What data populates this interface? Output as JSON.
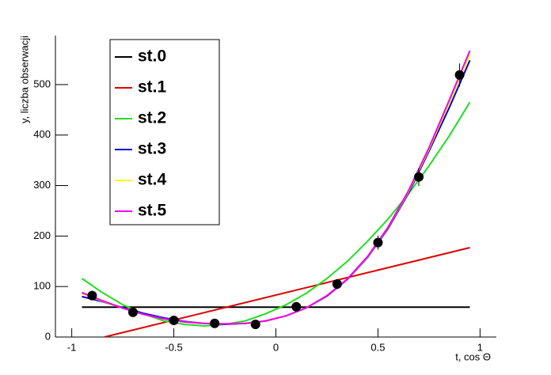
{
  "chart_data": {
    "type": "scatter",
    "x_label": "t, cos Θ",
    "y_label": "y, liczba obserwacji",
    "xlim": [
      -1.08,
      1.08
    ],
    "ylim": [
      0,
      597
    ],
    "xticks": [
      -1,
      -0.5,
      0,
      0.5,
      1
    ],
    "yticks": [
      0,
      100,
      200,
      300,
      400,
      500
    ],
    "color": "#000000",
    "x": [
      -0.9,
      -0.7,
      -0.5,
      -0.3,
      -0.1,
      0.1,
      0.3,
      0.5,
      0.7,
      0.9
    ],
    "values": [
      82,
      49,
      33,
      27,
      25,
      60,
      105,
      187,
      317,
      519
    ],
    "errors": [
      9,
      7,
      6,
      5,
      5,
      8,
      10,
      14,
      18,
      23
    ],
    "series": [
      {
        "name": "st.0",
        "color": "#000000",
        "x": [
          -0.95,
          0.95
        ],
        "values": [
          59,
          59
        ]
      },
      {
        "name": "st.1",
        "color": "#dd0000",
        "x": [
          -0.84,
          0.95
        ],
        "values": [
          0,
          177
        ]
      },
      {
        "name": "st.2",
        "color": "#22dd22",
        "x": [
          -0.95,
          -0.85,
          -0.75,
          -0.65,
          -0.55,
          -0.45,
          -0.35,
          -0.25,
          -0.15,
          -0.05,
          0.05,
          0.15,
          0.25,
          0.35,
          0.45,
          0.55,
          0.65,
          0.75,
          0.85,
          0.95
        ],
        "values": [
          116,
          88,
          64,
          46,
          32,
          25,
          22,
          25,
          32,
          46,
          64,
          87,
          116,
          150,
          190,
          234,
          284,
          339,
          399,
          465
        ]
      },
      {
        "name": "st.3",
        "color": "#0000cc",
        "x": [
          -0.95,
          -0.85,
          -0.75,
          -0.65,
          -0.55,
          -0.45,
          -0.35,
          -0.25,
          -0.15,
          -0.05,
          0.05,
          0.15,
          0.25,
          0.35,
          0.45,
          0.55,
          0.65,
          0.75,
          0.85,
          0.95
        ],
        "values": [
          80,
          70,
          58,
          47,
          38,
          31,
          27,
          25,
          27,
          32,
          42,
          58,
          81,
          114,
          158,
          215,
          285,
          368,
          455,
          548
        ]
      },
      {
        "name": "st.4",
        "color": "#ffff00",
        "x": [
          -0.95,
          -0.85,
          -0.75,
          -0.65,
          -0.55,
          -0.45,
          -0.35,
          -0.25,
          -0.15,
          -0.05,
          0.05,
          0.15,
          0.25,
          0.35,
          0.45,
          0.55,
          0.65,
          0.75,
          0.85,
          0.95
        ],
        "values": [
          86,
          71,
          57,
          45,
          36,
          30,
          27,
          26,
          27,
          32,
          42,
          58,
          82,
          115,
          159,
          217,
          288,
          372,
          465,
          560
        ]
      },
      {
        "name": "st.5",
        "color": "#ee00ee",
        "x": [
          -0.95,
          -0.85,
          -0.75,
          -0.65,
          -0.55,
          -0.45,
          -0.35,
          -0.25,
          -0.15,
          -0.05,
          0.05,
          0.15,
          0.25,
          0.35,
          0.45,
          0.55,
          0.65,
          0.75,
          0.85,
          0.95
        ],
        "values": [
          88,
          72,
          57,
          45,
          36,
          30,
          27,
          26,
          27,
          32,
          42,
          58,
          82,
          115,
          160,
          218,
          290,
          375,
          470,
          567
        ]
      }
    ]
  }
}
